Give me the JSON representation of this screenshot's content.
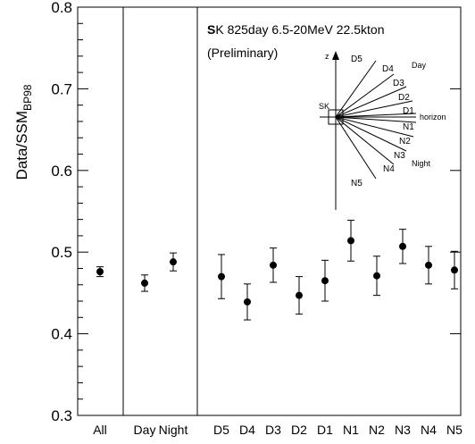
{
  "chart_data": {
    "type": "scatter",
    "ylabel": "Data/SSM",
    "ylabel_sub": "BP98",
    "ylim": [
      0.3,
      0.8
    ],
    "yticks": [
      0.3,
      0.4,
      0.5,
      0.6,
      0.7,
      0.8
    ],
    "ytick_labels": [
      "0.3",
      "0.4",
      "0.5",
      "0.6",
      "0.7",
      "0.8"
    ],
    "categories": [
      "All",
      "Day",
      "Night",
      "D5",
      "D4",
      "D3",
      "D2",
      "D1",
      "N1",
      "N2",
      "N3",
      "N4",
      "N5"
    ],
    "values": [
      0.476,
      0.462,
      0.488,
      0.47,
      0.439,
      0.484,
      0.447,
      0.465,
      0.514,
      0.471,
      0.507,
      0.484,
      0.478
    ],
    "err_low": [
      0.006,
      0.01,
      0.011,
      0.027,
      0.022,
      0.021,
      0.023,
      0.025,
      0.025,
      0.024,
      0.021,
      0.023,
      0.023
    ],
    "err_high": [
      0.006,
      0.01,
      0.011,
      0.027,
      0.022,
      0.021,
      0.023,
      0.025,
      0.025,
      0.024,
      0.021,
      0.023,
      0.023
    ],
    "groups": [
      [
        "All"
      ],
      [
        "Day",
        "Night"
      ],
      [
        "D5",
        "D4",
        "D3",
        "D2",
        "D1",
        "N1",
        "N2",
        "N3",
        "N4",
        "N5"
      ]
    ],
    "annotations": {
      "experiment_bold": "S",
      "experiment_rest": "K 825day  6.5-20MeV  22.5kton",
      "preliminary": "(Preliminary)"
    },
    "inset": {
      "z_label": "z",
      "detector_label": "SK",
      "horizon_label": "horizon",
      "day_label": "Day",
      "night_label": "Night",
      "bins": [
        "D5",
        "D4",
        "D3",
        "D2",
        "D1",
        "N1",
        "N2",
        "N3",
        "N4",
        "N5"
      ]
    },
    "grid": false,
    "legend": "none"
  }
}
